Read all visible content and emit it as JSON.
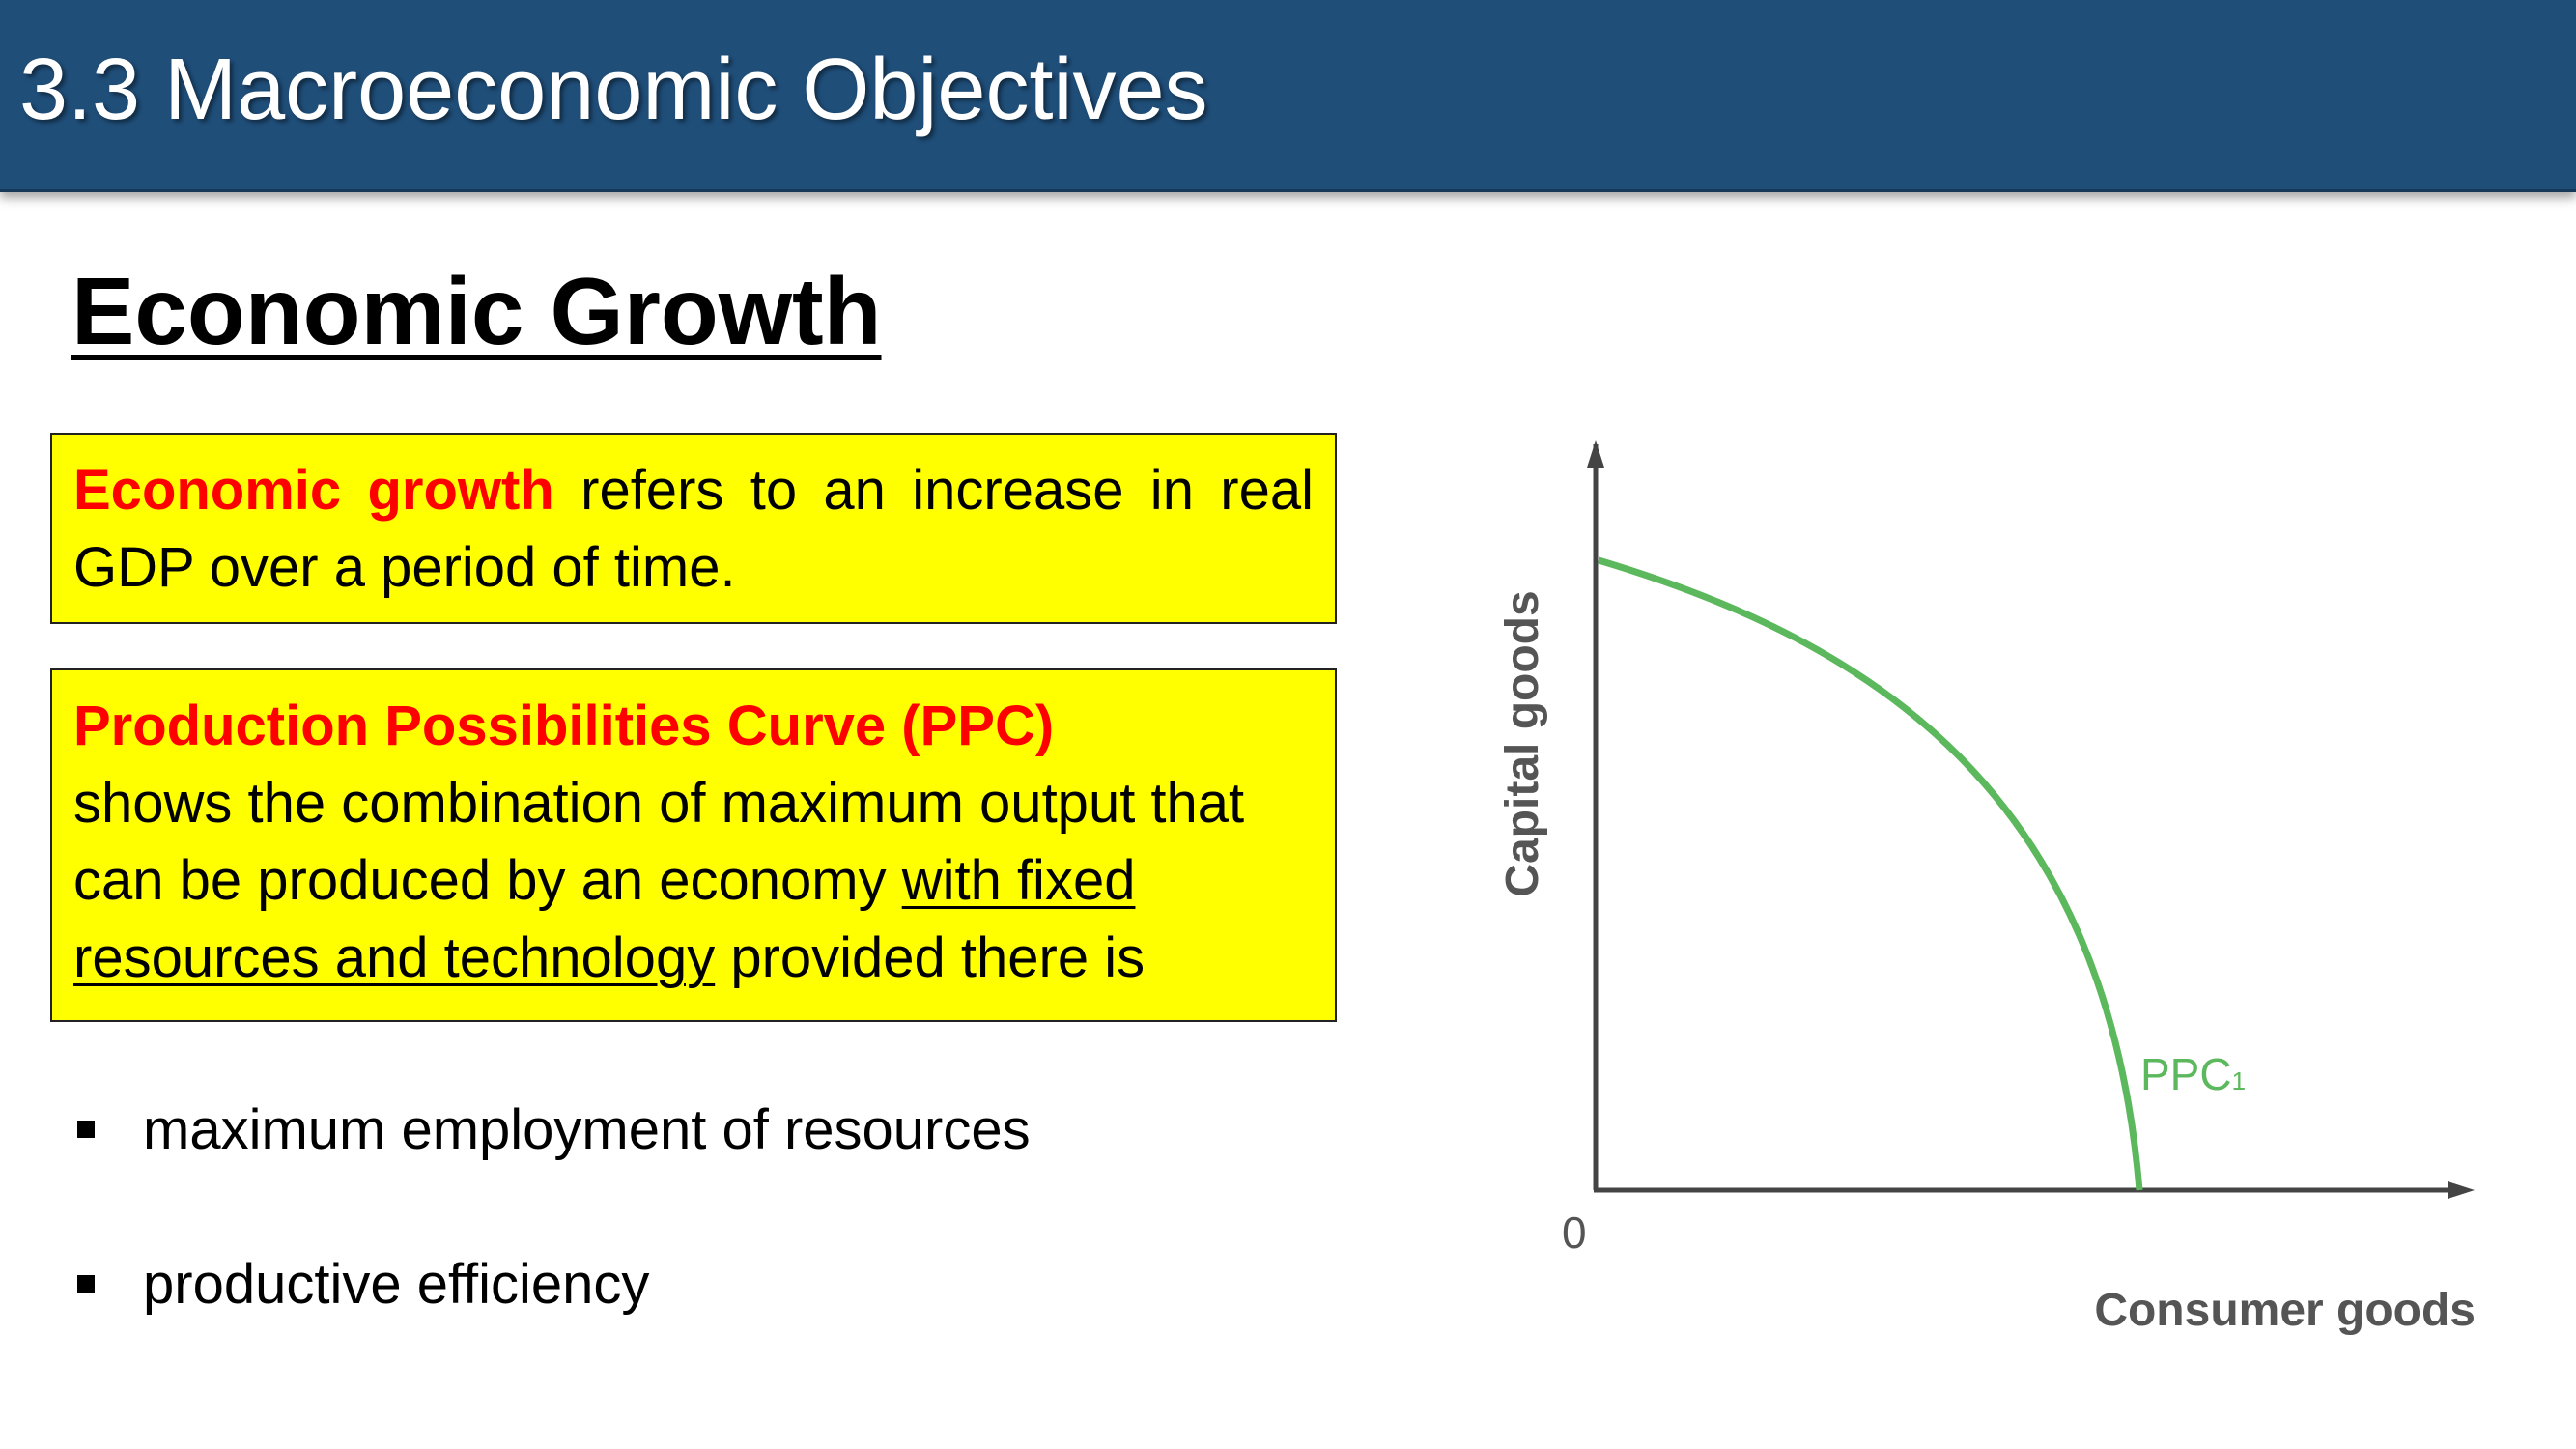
{
  "header": {
    "title": "3.3 Macroeconomic Objectives",
    "bar_color": "#1f4e79"
  },
  "section": {
    "heading": "Economic Growth"
  },
  "definitions": [
    {
      "term": "Economic growth",
      "text": " refers to an increase in real GDP over a period of time."
    },
    {
      "term": "Production Possibilities Curve (PPC)",
      "text_part1": "shows the combination of maximum output that can be produced by an economy ",
      "text_underlined": "with fixed resources and technology",
      "text_part2": " provided there is"
    }
  ],
  "bullets": [
    "maximum employment of resources",
    "productive efficiency"
  ],
  "colors": {
    "highlight_box": "#ffff00",
    "term_red": "#ff0000",
    "curve_green": "#5cb85c",
    "axis_dark": "#444444"
  },
  "diagram": {
    "y_axis_label": "Capital goods",
    "x_axis_label": "Consumer goods",
    "origin_label": "0",
    "curve_label_main": "PPC",
    "curve_label_sub": "1"
  }
}
